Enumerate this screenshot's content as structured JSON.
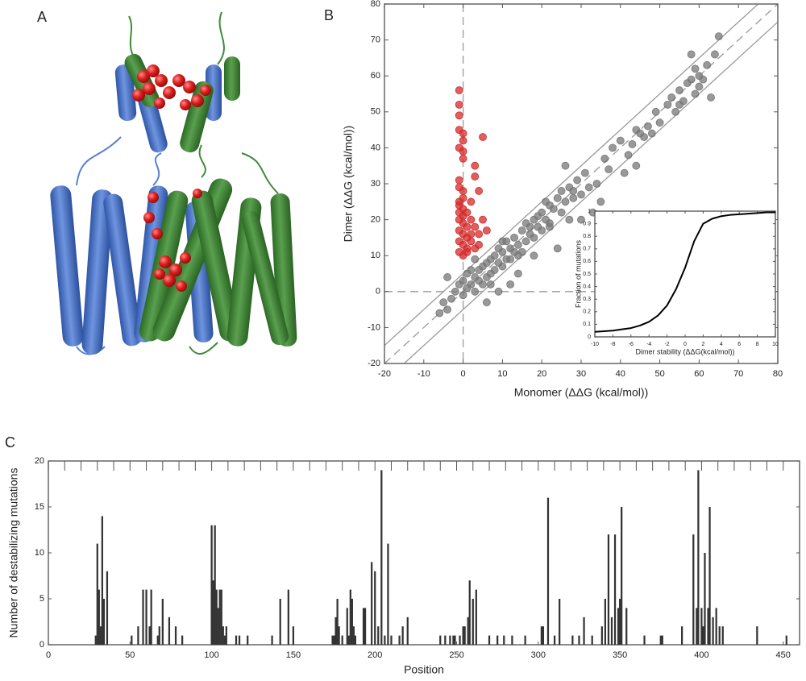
{
  "panel_labels": [
    "A",
    "B",
    "C"
  ],
  "chart_data": [
    {
      "type": "scatter",
      "xlabel": "Monomer (ΔΔG (kcal/mol))",
      "ylabel": "Dimer (ΔΔG (kcal/mol))",
      "xlim": [
        -20,
        80
      ],
      "ylim": [
        -20,
        80
      ],
      "xticks": [
        -20,
        -10,
        0,
        10,
        20,
        30,
        40,
        50,
        60,
        70,
        80
      ],
      "yticks": [
        -20,
        -10,
        0,
        10,
        20,
        30,
        40,
        50,
        60,
        70,
        80
      ],
      "reference_lines": [
        {
          "slope": 1,
          "intercept": 0,
          "dashed": true
        },
        {
          "slope": 1,
          "intercept": 5,
          "dashed": false
        },
        {
          "slope": 1,
          "intercept": -5,
          "dashed": false
        },
        {
          "x": 0,
          "dashed": true
        },
        {
          "y": 0,
          "dashed": true
        }
      ],
      "series": [
        {
          "color": "#777777",
          "x": [
            -6,
            -5,
            -4,
            -3,
            -2,
            -1,
            0,
            0,
            1,
            1,
            2,
            2,
            3,
            3,
            4,
            4,
            5,
            5,
            6,
            6,
            7,
            7,
            8,
            8,
            9,
            9,
            10,
            10,
            11,
            12,
            12,
            13,
            14,
            14,
            15,
            16,
            16,
            17,
            18,
            18,
            19,
            20,
            20,
            21,
            22,
            22,
            23,
            24,
            25,
            25,
            26,
            27,
            28,
            29,
            30,
            31,
            32,
            33,
            34,
            35,
            14,
            18,
            24,
            30,
            6,
            9,
            12,
            27,
            36,
            38,
            40,
            42,
            43,
            44,
            45,
            46,
            47,
            49,
            50,
            52,
            53,
            54,
            55,
            56,
            57,
            58,
            59,
            60,
            60,
            61,
            62,
            63,
            64,
            65,
            58,
            59,
            41,
            44,
            26,
            22,
            21,
            19,
            17,
            -4,
            3,
            15,
            11,
            7,
            28,
            37,
            48,
            55,
            10,
            13
          ],
          "values": [
            -6,
            -3,
            -5,
            -2,
            0,
            2,
            -1,
            3,
            1,
            5,
            2,
            6,
            4,
            0,
            6,
            3,
            7,
            2,
            8,
            4,
            9,
            5,
            10,
            6,
            12,
            8,
            11,
            7,
            14,
            12,
            9,
            15,
            13,
            10,
            17,
            14,
            19,
            16,
            20,
            15,
            18,
            22,
            17,
            20,
            24,
            19,
            23,
            26,
            22,
            28,
            25,
            29,
            26,
            31,
            27,
            33,
            29,
            22,
            30,
            25,
            5,
            10,
            12,
            20,
            -3,
            0,
            2,
            20,
            37,
            40,
            42,
            38,
            41,
            45,
            44,
            43,
            46,
            50,
            47,
            52,
            54,
            50,
            56,
            53,
            58,
            59,
            55,
            60,
            57,
            59,
            63,
            54,
            66,
            71,
            66,
            62,
            33,
            35,
            35,
            18,
            25,
            21,
            18,
            4,
            9,
            11,
            9,
            2,
            28,
            34,
            44,
            52,
            14,
            11
          ]
        },
        {
          "color": "#d42a2a",
          "x": [
            -1,
            -1,
            -1,
            -1,
            0,
            0,
            -1,
            0,
            0,
            -1,
            -1,
            0,
            -1,
            0,
            -1,
            0,
            -1,
            0,
            1,
            -1,
            0,
            1,
            -1,
            0,
            1,
            -1,
            0,
            2,
            2,
            3,
            3,
            4,
            5,
            3,
            4,
            5,
            6,
            2,
            3,
            1,
            0,
            1,
            2,
            4,
            -1
          ],
          "values": [
            56,
            52,
            49,
            45,
            44,
            42,
            40,
            39,
            37,
            31,
            29,
            28,
            25,
            23,
            22,
            21,
            20,
            19,
            18,
            17,
            16,
            15,
            14,
            13,
            12,
            11,
            10,
            25,
            20,
            35,
            32,
            28,
            43,
            18,
            16,
            20,
            17,
            14,
            12,
            11,
            26,
            22,
            16,
            13,
            24
          ]
        }
      ]
    },
    {
      "type": "line",
      "xlabel": "Dimer stability (ΔΔG(kcal/mol))",
      "ylabel": "Fraction of mutations",
      "xlim": [
        -10,
        10
      ],
      "ylim": [
        0,
        1
      ],
      "xticks": [
        -10,
        -8,
        -6,
        -4,
        -2,
        0,
        2,
        4,
        6,
        8,
        10
      ],
      "yticks": [
        0,
        0.1,
        0.2,
        0.3,
        0.4,
        0.5,
        0.6,
        0.7,
        0.8,
        0.9,
        1
      ],
      "series": [
        {
          "color": "#000000",
          "x": [
            -10,
            -9,
            -8,
            -7,
            -6,
            -5,
            -4,
            -3,
            -2,
            -1,
            0,
            1,
            2,
            3,
            4,
            5,
            6,
            7,
            8,
            9,
            10
          ],
          "values": [
            0.04,
            0.045,
            0.05,
            0.06,
            0.07,
            0.09,
            0.12,
            0.17,
            0.25,
            0.38,
            0.55,
            0.76,
            0.9,
            0.94,
            0.96,
            0.97,
            0.975,
            0.98,
            0.985,
            0.99,
            0.99
          ]
        }
      ]
    },
    {
      "type": "bar",
      "xlabel": "Position",
      "ylabel": "Number of destabilizing mutations",
      "xlim": [
        0,
        460
      ],
      "ylim": [
        0,
        20
      ],
      "xticks": [
        0,
        50,
        100,
        150,
        200,
        250,
        300,
        350,
        400,
        450
      ],
      "xminorticks": [
        10,
        20,
        30,
        40,
        60,
        70,
        80,
        90,
        110,
        120,
        130,
        140,
        160,
        170,
        180,
        190,
        210,
        220,
        230,
        240,
        260,
        270,
        280,
        290,
        310,
        320,
        330,
        340,
        360,
        370,
        380,
        390,
        410,
        420,
        430,
        440
      ],
      "yticks": [
        0,
        5,
        10,
        15,
        20
      ],
      "color": "#333333",
      "series": [
        {
          "color": "#333333",
          "x": [
            29,
            30,
            31,
            32,
            33,
            34,
            36,
            51,
            55,
            58,
            60,
            62,
            63,
            67,
            68,
            70,
            74,
            78,
            82,
            100,
            101,
            102,
            103,
            104,
            105,
            106,
            107,
            108,
            109,
            115,
            117,
            122,
            137,
            142,
            147,
            150,
            174,
            175,
            176,
            177,
            178,
            180,
            183,
            184,
            185,
            186,
            187,
            188,
            193,
            194,
            198,
            200,
            202,
            204,
            206,
            208,
            210,
            215,
            217,
            220,
            240,
            243,
            246,
            248,
            249,
            252,
            254,
            255,
            257,
            258,
            260,
            262,
            270,
            275,
            279,
            284,
            292,
            302,
            303,
            306,
            310,
            313,
            321,
            325,
            328,
            333,
            339,
            341,
            343,
            345,
            347,
            349,
            350,
            351,
            354,
            365,
            375,
            376,
            388,
            395,
            397,
            398,
            400,
            401,
            402,
            404,
            405,
            407,
            409,
            411,
            413,
            434,
            452
          ],
          "values": [
            1,
            11,
            6,
            2,
            14,
            5,
            8,
            1,
            2,
            6,
            6,
            2,
            6,
            1,
            2,
            5,
            3,
            2,
            1,
            13,
            7,
            13,
            6,
            4,
            6,
            6,
            2,
            1,
            2,
            1,
            1,
            1,
            1,
            5,
            6,
            2,
            1,
            1,
            3,
            5,
            2,
            1,
            4,
            1,
            6,
            5,
            2,
            1,
            4,
            4,
            9,
            8,
            2,
            19,
            1,
            11,
            1,
            1,
            2,
            3,
            1,
            1,
            1,
            1,
            1,
            1,
            2,
            2,
            3,
            7,
            5,
            6,
            1,
            1,
            1,
            1,
            1,
            2,
            2,
            16,
            1,
            5,
            1,
            1,
            3,
            1,
            2,
            5,
            12,
            3,
            12,
            4,
            5,
            15,
            4,
            1,
            1,
            1,
            2,
            12,
            4,
            19,
            4,
            2,
            10,
            4,
            15,
            3,
            4,
            2,
            2,
            2,
            1
          ]
        }
      ]
    }
  ]
}
